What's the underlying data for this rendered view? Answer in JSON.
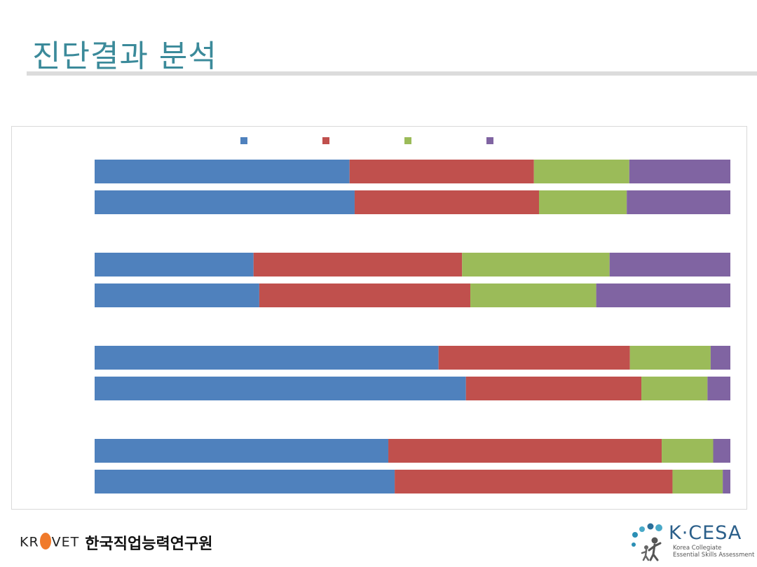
{
  "slide": {
    "title": "진단결과 분석"
  },
  "chart_data": {
    "type": "bar",
    "orientation": "horizontal",
    "stacked": "percent",
    "categories": [
      "",
      "",
      "",
      "",
      "",
      "",
      "",
      ""
    ],
    "series": [
      {
        "color": "#4f81bd",
        "values": [
          40.1,
          40.9,
          25.0,
          25.9,
          54.1,
          58.4,
          46.2,
          47.2
        ]
      },
      {
        "color": "#c0504d",
        "values": [
          29.0,
          29.0,
          32.8,
          33.2,
          30.1,
          27.6,
          43.0,
          43.7
        ]
      },
      {
        "color": "#9bbb59",
        "values": [
          15.0,
          13.8,
          23.2,
          19.8,
          12.7,
          10.4,
          8.1,
          7.9
        ]
      },
      {
        "color": "#8064a2",
        "values": [
          15.9,
          16.3,
          19.0,
          21.1,
          3.1,
          3.6,
          2.7,
          1.2
        ]
      }
    ],
    "legend": "top",
    "grid": false
  },
  "footer": {
    "krivet_en_1": "KR",
    "krivet_en_2": "VET",
    "krivet_ko": "한국직업능력연구원",
    "kcesa_name": "K·CESA",
    "kcesa_line1": "Korea Collegiate",
    "kcesa_line2": "Essential Skills Assessment"
  }
}
